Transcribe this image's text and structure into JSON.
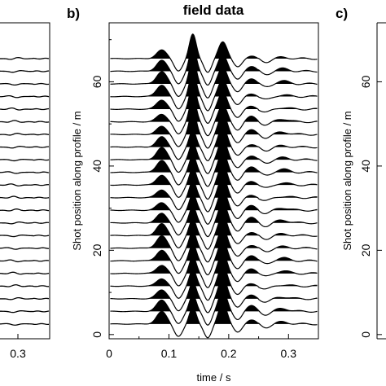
{
  "chart_data": [
    {
      "panel": "a",
      "type": "wiggle",
      "title": "",
      "xlabel": "",
      "ylabel": "",
      "x_ticks": [
        "0.3"
      ],
      "x_range": [
        0.22,
        0.35
      ],
      "traces_visible": 22
    },
    {
      "panel": "b",
      "type": "wiggle",
      "panel_label": "b)",
      "title": "field data",
      "xlabel": "time / s",
      "ylabel": "Shot position along profile / m",
      "xlim": [
        0,
        0.35
      ],
      "ylim": [
        -1,
        74
      ],
      "x_ticks": [
        "0",
        "0.1",
        "0.2",
        "0.3"
      ],
      "y_ticks": [
        "0",
        "20",
        "40",
        "60"
      ],
      "trace_count": 22,
      "first_trace_position": 2.5,
      "trace_spacing": 3,
      "series": [
        {
          "name": "",
          "peak_time": 0.088,
          "amplitude": 0.9,
          "filled": true
        },
        {
          "name": "",
          "peak_time": 0.14,
          "amplitude": 1.3,
          "filled": true
        },
        {
          "name": "",
          "peak_time": 0.19,
          "amplitude": 1.2,
          "filled": true
        },
        {
          "name": "",
          "peak_time": 0.165,
          "amplitude": -0.8,
          "filled": false
        },
        {
          "name": "",
          "peak_time": 0.24,
          "amplitude": 0.35,
          "filled": false
        }
      ]
    },
    {
      "panel": "c",
      "type": "wiggle",
      "panel_label": "c)",
      "title": "",
      "xlabel": "",
      "ylabel": "Shot position along profile / m",
      "y_ticks": [
        "0",
        "20",
        "40",
        "60"
      ]
    }
  ],
  "colors": {
    "trace": "#000000",
    "fill": "#000000",
    "background": "#ffffff"
  }
}
